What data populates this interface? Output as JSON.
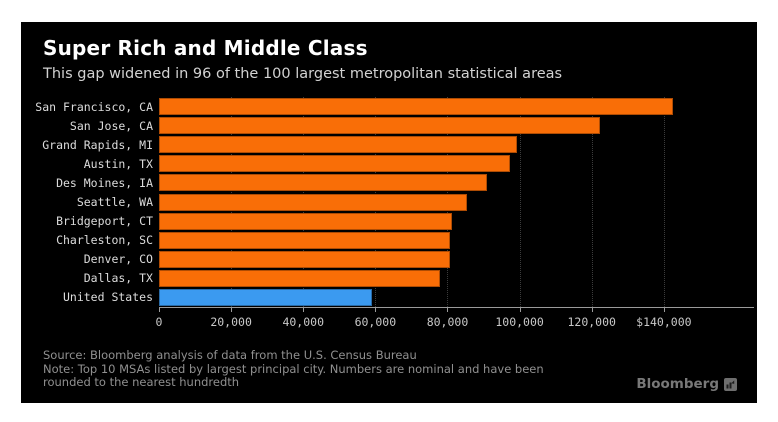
{
  "header": {
    "title": "Super Rich and Middle Class",
    "subtitle": "This gap widened in 96 of the 100 largest metropolitan statistical areas"
  },
  "chart_data": {
    "type": "bar",
    "orientation": "horizontal",
    "title": "Super Rich and Middle Class",
    "subtitle": "This gap widened in 96 of the 100 largest metropolitan statistical areas",
    "categories": [
      "San Francisco, CA",
      "San Jose, CA",
      "Grand Rapids, MI",
      "Austin, TX",
      "Des Moines, IA",
      "Seattle, WA",
      "Bridgeport, CT",
      "Charleston, SC",
      "Denver, CO",
      "Dallas, TX",
      "United States"
    ],
    "values": [
      142400,
      122400,
      99300,
      97400,
      91000,
      85400,
      81300,
      80800,
      80600,
      78000,
      59000
    ],
    "highlight_index": 10,
    "bar_color": "#f96e07",
    "highlight_color": "#3b9af0",
    "xlim": [
      0,
      165000
    ],
    "xticks": [
      0,
      20000,
      40000,
      60000,
      80000,
      100000,
      120000,
      140000
    ],
    "xtick_labels": [
      "0",
      "20,000",
      "40,000",
      "60,000",
      "80,000",
      "100,000",
      "120,000",
      "$140,000"
    ],
    "grid": "vertical-dotted",
    "legend": "none"
  },
  "footer": {
    "lines": [
      "Source: Bloomberg analysis of data from the U.S. Census Bureau",
      "Note: Top 10 MSAs listed by largest principal city. Numbers are nominal and have been",
      "rounded to the nearest hundredth"
    ],
    "logo_text": "Bloomberg"
  },
  "colors": {
    "page_background": "#ffffff",
    "panel_background": "#000000",
    "title": "#ffffff",
    "subtitle": "#d2d2d2",
    "category_label": "#dcdcdc",
    "tick_label": "#c8c8c8",
    "axis_line": "#9a9a9a",
    "gridline": "#3c3c3c",
    "footer_text": "#909090",
    "logo": "#787878"
  }
}
